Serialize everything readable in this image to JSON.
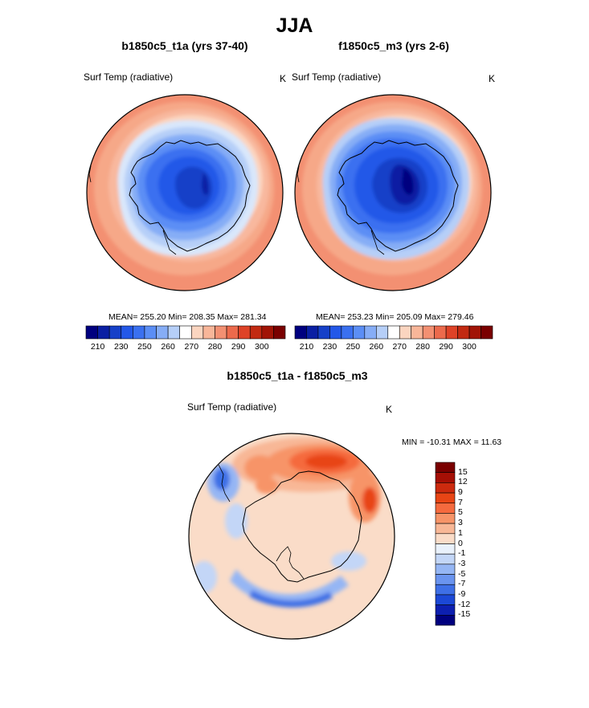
{
  "figure": {
    "title": "JJA",
    "panels": [
      {
        "id": "model",
        "title": "b1850c5_t1a (yrs 37-40)",
        "field_label": "Surf Temp (radiative)",
        "units": "K",
        "stats_text": "MEAN= 255.20  Min= 208.35  Max= 281.34",
        "mean": 255.2,
        "min": 208.35,
        "max": 281.34
      },
      {
        "id": "obs",
        "title": "f1850c5_m3 (yrs 2-6)",
        "field_label": "Surf Temp (radiative)",
        "units": "K",
        "stats_text": "MEAN= 253.23  Min= 205.09  Max= 279.46",
        "mean": 253.23,
        "min": 205.09,
        "max": 279.46
      }
    ],
    "difference": {
      "title": "b1850c5_t1a - f1850c5_m3",
      "field_label": "Surf Temp (radiative)",
      "units": "K",
      "minmax_text": "MIN = -10.31 MAX =  11.63",
      "min": -10.31,
      "max": 11.63
    }
  },
  "chart_data": [
    {
      "type": "heatmap",
      "projection": "south-polar-stereographic",
      "title": "b1850c5_t1a (yrs 37-40)",
      "variable": "Surf Temp (radiative)",
      "units": "K",
      "colorbar": {
        "orientation": "horizontal",
        "tick_labels": [
          "210",
          "230",
          "250",
          "260",
          "270",
          "280",
          "290",
          "300"
        ],
        "colors": [
          "#00007f",
          "#0a1fa3",
          "#1640c8",
          "#2358e8",
          "#3a70f0",
          "#5b8ef5",
          "#86adf6",
          "#b6cff8",
          "#ffffff",
          "#fbd5c0",
          "#f8b699",
          "#f39072",
          "#ec6a4c",
          "#de4227",
          "#c22a12",
          "#a11406",
          "#7a0000"
        ]
      },
      "levels": [
        {
          "value": 210,
          "color": "#0a1fa3"
        },
        {
          "value": 230,
          "color": "#1e4fe0"
        },
        {
          "value": 250,
          "color": "#3a70f0"
        },
        {
          "value": 260,
          "color": "#86adf6"
        },
        {
          "value": 270,
          "color": "#fbd5c0"
        },
        {
          "value": 280,
          "color": "#f39072"
        }
      ]
    },
    {
      "type": "heatmap",
      "projection": "south-polar-stereographic",
      "title": "f1850c5_m3 (yrs 2-6)",
      "variable": "Surf Temp (radiative)",
      "units": "K",
      "colorbar": {
        "orientation": "horizontal",
        "tick_labels": [
          "210",
          "230",
          "250",
          "260",
          "270",
          "280",
          "290",
          "300"
        ],
        "colors": [
          "#00007f",
          "#0a1fa3",
          "#1640c8",
          "#2358e8",
          "#3a70f0",
          "#5b8ef5",
          "#86adf6",
          "#b6cff8",
          "#ffffff",
          "#fbd5c0",
          "#f8b699",
          "#f39072",
          "#ec6a4c",
          "#de4227",
          "#c22a12",
          "#a11406",
          "#7a0000"
        ]
      },
      "levels": [
        {
          "value": 205,
          "color": "#000a8a"
        },
        {
          "value": 230,
          "color": "#1e4fe0"
        },
        {
          "value": 250,
          "color": "#3a70f0"
        },
        {
          "value": 260,
          "color": "#86adf6"
        },
        {
          "value": 270,
          "color": "#fbd5c0"
        },
        {
          "value": 280,
          "color": "#f39072"
        }
      ]
    },
    {
      "type": "heatmap",
      "projection": "south-polar-stereographic",
      "title": "b1850c5_t1a - f1850c5_m3",
      "variable": "Surf Temp (radiative)",
      "units": "K",
      "colorbar": {
        "orientation": "vertical",
        "tick_labels": [
          "15",
          "12",
          "9",
          "7",
          "5",
          "3",
          "1",
          "0",
          "-1",
          "-3",
          "-5",
          "-7",
          "-9",
          "-12",
          "-15"
        ],
        "colors": [
          "#7a0000",
          "#a50f05",
          "#cc2a0e",
          "#e84515",
          "#f56a3e",
          "#f79468",
          "#f8b796",
          "#fadcc8",
          "#e9f1fb",
          "#c3d6f7",
          "#95b6f4",
          "#6a94ef",
          "#3e6fe6",
          "#1c48d6",
          "#0d1fb0",
          "#00007f"
        ]
      }
    }
  ]
}
